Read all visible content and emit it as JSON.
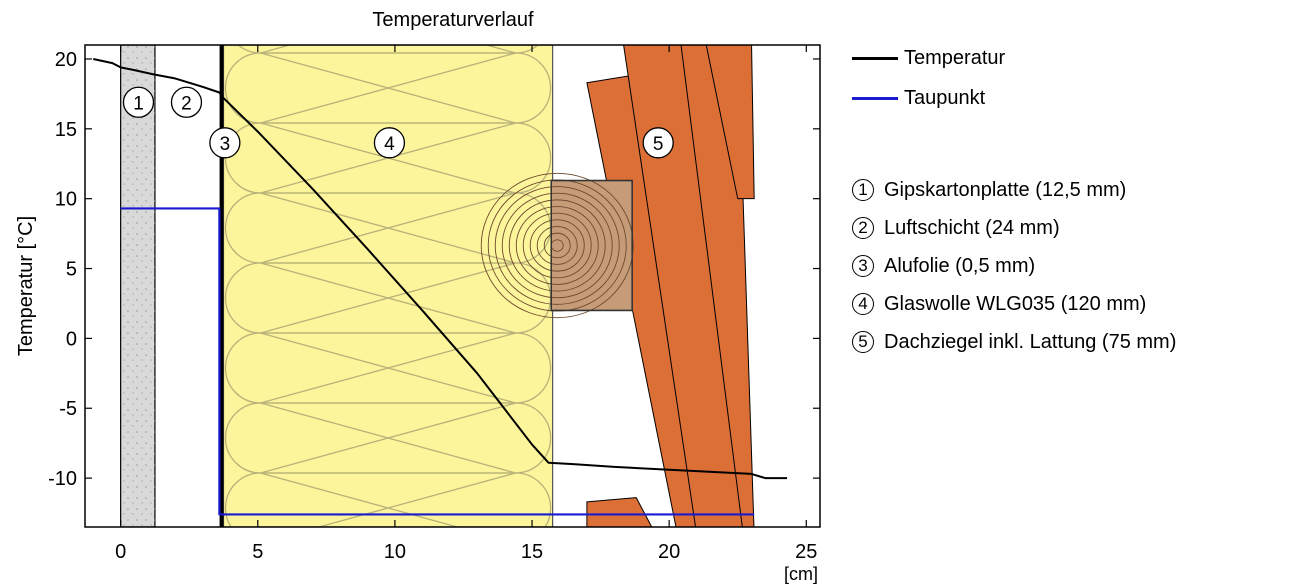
{
  "chart_data": {
    "type": "line",
    "title": "Temperaturverlauf",
    "xlabel": "",
    "x_unit_label": "[cm]",
    "ylabel": "Temperatur [°C]",
    "xlim": [
      -1.3,
      25.5
    ],
    "ylim": [
      -13.5,
      21
    ],
    "x_ticks": [
      0,
      5,
      10,
      15,
      20,
      25
    ],
    "y_ticks": [
      20,
      15,
      10,
      5,
      0,
      -5,
      -10
    ],
    "grid": false,
    "legend_position": "right",
    "series": [
      {
        "name": "Temperatur",
        "color": "#000000",
        "x": [
          -1.0,
          -0.3,
          0.0,
          0.5,
          1.2,
          2.0,
          3.0,
          3.6,
          3.7,
          5.0,
          7.0,
          9.0,
          11.0,
          13.0,
          15.0,
          15.6,
          16.5,
          18.0,
          20.0,
          22.0,
          23.0,
          23.5,
          24.3
        ],
        "y": [
          20.0,
          19.7,
          19.4,
          19.2,
          18.9,
          18.6,
          18.0,
          17.6,
          17.3,
          14.8,
          10.7,
          6.4,
          2.0,
          -2.5,
          -7.6,
          -8.9,
          -9.0,
          -9.2,
          -9.4,
          -9.6,
          -9.7,
          -10.0,
          -10.0
        ]
      },
      {
        "name": "Taupunkt",
        "color": "#1a1ad0",
        "x": [
          0.0,
          3.6,
          3.6,
          23.1
        ],
        "y": [
          9.3,
          9.3,
          -12.6,
          -12.6
        ]
      }
    ],
    "layers": [
      {
        "number": "1",
        "label": "Gipskartonplatte (12,5 mm)"
      },
      {
        "number": "2",
        "label": "Luftschicht (24 mm)"
      },
      {
        "number": "3",
        "label": "Alufolie (0,5 mm)"
      },
      {
        "number": "4",
        "label": "Glaswolle WLG035 (120 mm)"
      },
      {
        "number": "5",
        "label": "Dachziegel inkl. Lattung (75 mm)"
      }
    ]
  },
  "colors": {
    "gypsum": "#d9d9d9",
    "insulation": "#fdf59b",
    "insulation_lines": "#b8b27a",
    "tile": "#dc6f36",
    "batten": "#c69c78"
  }
}
